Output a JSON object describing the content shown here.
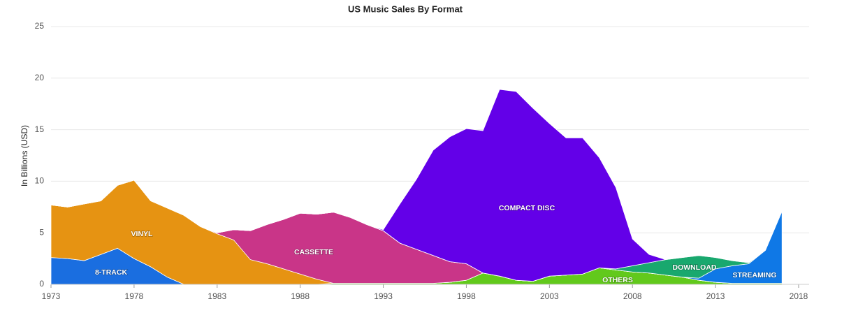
{
  "chart_data": {
    "type": "stacked_area",
    "title": "US Music Sales By Format",
    "y_label": "In Billions (USD)",
    "x": [
      1973,
      1974,
      1975,
      1976,
      1977,
      1978,
      1979,
      1980,
      1981,
      1982,
      1983,
      1984,
      1985,
      1986,
      1987,
      1988,
      1989,
      1990,
      1991,
      1992,
      1993,
      1994,
      1995,
      1996,
      1997,
      1998,
      1999,
      2000,
      2001,
      2002,
      2003,
      2004,
      2005,
      2006,
      2007,
      2008,
      2009,
      2010,
      2011,
      2012,
      2013,
      2014,
      2015,
      2016,
      2017
    ],
    "xlim": [
      1973,
      2018
    ],
    "xticks": [
      1973,
      1978,
      1983,
      1988,
      1993,
      1998,
      2003,
      2008,
      2013,
      2018
    ],
    "ylim": [
      0,
      25
    ],
    "yticks": [
      0,
      5,
      10,
      15,
      20,
      25
    ],
    "grid": true,
    "series": [
      {
        "name": "OTHERS",
        "color": "#62c91c",
        "values": [
          0,
          0,
          0,
          0,
          0,
          0,
          0,
          0,
          0,
          0,
          0,
          0,
          0,
          0,
          0,
          0,
          0,
          0.1,
          0.1,
          0.1,
          0.1,
          0.1,
          0.1,
          0.1,
          0.2,
          0.4,
          1.1,
          0.8,
          0.4,
          0.3,
          0.8,
          0.9,
          1.0,
          1.6,
          1.4,
          1.2,
          1.1,
          0.9,
          0.7,
          0.4,
          0.2,
          0.1,
          0.1,
          0.1,
          0.1
        ]
      },
      {
        "name": "8-TRACK",
        "color": "#1a6ee0",
        "values": [
          2.6,
          2.5,
          2.3,
          2.9,
          3.5,
          2.5,
          1.7,
          0.7,
          0,
          0,
          0,
          0,
          0,
          0,
          0,
          0,
          0,
          0,
          0,
          0,
          0,
          0,
          0,
          0,
          0,
          0,
          0,
          0,
          0,
          0,
          0,
          0,
          0,
          0,
          0,
          0,
          0,
          0,
          0,
          0,
          0,
          0,
          0,
          0,
          0
        ]
      },
      {
        "name": "VINYL",
        "color": "#e69312",
        "values": [
          5.1,
          5.0,
          5.5,
          5.2,
          6.1,
          7.6,
          6.4,
          6.7,
          6.7,
          5.6,
          4.9,
          4.3,
          2.4,
          2.0,
          1.5,
          1.0,
          0.5,
          0,
          0,
          0,
          0,
          0,
          0,
          0,
          0,
          0,
          0,
          0,
          0,
          0,
          0,
          0,
          0,
          0,
          0,
          0,
          0,
          0,
          0,
          0,
          0,
          0,
          0,
          0,
          0
        ]
      },
      {
        "name": "CASSETTE",
        "color": "#c93588",
        "values": [
          0,
          0,
          0,
          0,
          0,
          0,
          0,
          0,
          0,
          0,
          0.1,
          1.0,
          2.8,
          3.8,
          4.8,
          5.9,
          6.3,
          6.9,
          6.4,
          5.7,
          5.1,
          3.9,
          3.3,
          2.7,
          2.0,
          1.6,
          0,
          0,
          0,
          0,
          0,
          0,
          0,
          0,
          0,
          0,
          0,
          0,
          0,
          0,
          0,
          0,
          0,
          0,
          0
        ]
      },
      {
        "name": "STREAMING",
        "color": "#0f78e6",
        "values": [
          0,
          0,
          0,
          0,
          0,
          0,
          0,
          0,
          0,
          0,
          0,
          0,
          0,
          0,
          0,
          0,
          0,
          0,
          0,
          0,
          0,
          0,
          0,
          0,
          0,
          0,
          0,
          0,
          0,
          0,
          0,
          0,
          0,
          0,
          0,
          0,
          0,
          0,
          0,
          0.2,
          1.3,
          1.7,
          1.9,
          3.2,
          7.0
        ]
      },
      {
        "name": "DOWNLOAD",
        "color": "#19a86e",
        "values": [
          0,
          0,
          0,
          0,
          0,
          0,
          0,
          0,
          0,
          0,
          0,
          0,
          0,
          0,
          0,
          0,
          0,
          0,
          0,
          0,
          0,
          0,
          0,
          0,
          0,
          0,
          0,
          0,
          0,
          0,
          0,
          0,
          0,
          0,
          0.1,
          0.6,
          1.0,
          1.5,
          1.9,
          2.2,
          1.1,
          0.5,
          0.1,
          0,
          0
        ]
      },
      {
        "name": "COMPACT DISC",
        "color": "#6300e8",
        "values": [
          0,
          0,
          0,
          0,
          0,
          0,
          0,
          0,
          0,
          0,
          0,
          0,
          0,
          0,
          0,
          0,
          0,
          0,
          0,
          0,
          0.1,
          3.8,
          6.8,
          10.2,
          12.1,
          13.1,
          13.8,
          18.1,
          18.3,
          16.8,
          14.8,
          13.3,
          13.2,
          10.7,
          7.9,
          2.6,
          0.8,
          0,
          0,
          0,
          0,
          0,
          0,
          0,
          0
        ]
      }
    ]
  }
}
